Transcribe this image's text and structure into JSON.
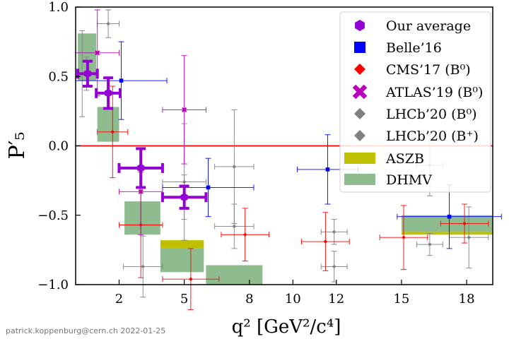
{
  "chart_data": {
    "type": "scatter",
    "title": "",
    "xlabel": "q² [GeV²/c⁴]",
    "ylabel": "P′₅",
    "xlim": [
      0,
      19.2
    ],
    "ylim": [
      -1.0,
      1.0
    ],
    "xticks": [
      2,
      5,
      8,
      10,
      12,
      15,
      18
    ],
    "xtick_labels": [
      "2",
      "5",
      "8",
      "10",
      "12",
      "15",
      "18"
    ],
    "yticks": [
      -1.0,
      -0.5,
      0.0,
      0.5,
      1.0
    ],
    "ytick_labels": [
      "−1.0",
      "−0.5",
      "0.0",
      "0.5",
      "1.0"
    ],
    "reference_line": {
      "y": 0.0,
      "color": "#ff0000"
    },
    "legend_position": "top-right",
    "footer": "patrick.koppenburg@cern.ch  2022-01-25",
    "series": [
      {
        "name": "Our average",
        "marker": "hexagon",
        "color": "#9400d3",
        "points": [
          {
            "x": 0.55,
            "xerr": 0.45,
            "y": 0.52,
            "yerr": 0.09
          },
          {
            "x": 1.5,
            "xerr": 0.55,
            "y": 0.38,
            "yerr": 0.11
          },
          {
            "x": 3.0,
            "xerr": 1.0,
            "y": -0.16,
            "yerr": 0.14
          },
          {
            "x": 5.0,
            "xerr": 1.0,
            "y": -0.37,
            "yerr": 0.08
          }
        ]
      },
      {
        "name": "Belle’16",
        "marker": "square",
        "color": "#0000ff",
        "points": [
          {
            "x": 2.1,
            "xerr": 2.1,
            "y": 0.47,
            "yerr": 0.28
          },
          {
            "x": 6.1,
            "xerr": 2.1,
            "y": -0.3,
            "yerr": 0.21
          },
          {
            "x": 11.6,
            "xerr": 1.4,
            "y": -0.17,
            "yerr": 0.25
          },
          {
            "x": 17.2,
            "xerr": 2.4,
            "y": -0.51,
            "yerr": 0.23
          }
        ]
      },
      {
        "name": "CMS’17 (B⁰)",
        "marker": "diamond",
        "color": "#ff0000",
        "points": [
          {
            "x": 1.7,
            "xerr": 0.7,
            "y": 0.1,
            "yerr": 0.33
          },
          {
            "x": 3.0,
            "xerr": 1.0,
            "y": -0.57,
            "yerr": 0.38
          },
          {
            "x": 5.3,
            "xerr": 1.3,
            "y": -0.96,
            "yerr": 0.22
          },
          {
            "x": 7.8,
            "xerr": 1.1,
            "y": -0.64,
            "yerr": 0.19
          },
          {
            "x": 11.5,
            "xerr": 1.1,
            "y": -0.69,
            "yerr": 0.21
          },
          {
            "x": 15.1,
            "xerr": 1.1,
            "y": -0.66,
            "yerr": 0.23
          },
          {
            "x": 17.9,
            "xerr": 1.1,
            "y": -0.56,
            "yerr": 0.14
          }
        ]
      },
      {
        "name": "ATLAS’19 (B⁰)",
        "marker": "cross",
        "color": "#bb00bb",
        "points": [
          {
            "x": 1.0,
            "xerr": 1.0,
            "y": 0.67,
            "yerr": 0.31
          },
          {
            "x": 3.0,
            "xerr": 1.0,
            "y": -0.33,
            "yerr": 0.31
          },
          {
            "x": 5.0,
            "xerr": 1.0,
            "y": 0.26,
            "yerr": 0.39
          }
        ]
      },
      {
        "name": "LHCb’20 (B⁰)",
        "marker": "diamond",
        "color": "#808080",
        "points": [
          {
            "x": 0.3,
            "xerr": 0.2,
            "y": 0.52,
            "yerr": 0.31
          },
          {
            "x": 1.5,
            "xerr": 0.5,
            "y": 0.88,
            "yerr": 0.1
          },
          {
            "x": 3.1,
            "xerr": 0.9,
            "y": -0.87,
            "yerr": 0.22
          },
          {
            "x": 5.0,
            "xerr": 1.0,
            "y": -0.26,
            "yerr": 0.42
          },
          {
            "x": 7.3,
            "xerr": 0.9,
            "y": -0.15,
            "yerr": 0.41
          },
          {
            "x": 7.3,
            "xerr": 0.9,
            "y": -0.58,
            "yerr": 0.16
          },
          {
            "x": 11.9,
            "xerr": 0.6,
            "y": -0.62,
            "yerr": 0.09
          },
          {
            "x": 11.9,
            "xerr": 0.6,
            "y": -0.87,
            "yerr": 0.11
          },
          {
            "x": 16.3,
            "xerr": 0.6,
            "y": -0.71,
            "yerr": 0.08
          },
          {
            "x": 16.3,
            "xerr": 0.6,
            "y": -0.14,
            "yerr": 0.22
          }
        ]
      },
      {
        "name": "LHCb’20 (B⁺)",
        "marker": "diamond",
        "color": "#808080",
        "points": [
          {
            "x": 0.5,
            "xerr": 0.4,
            "y": 0.52,
            "yerr": 0.12
          },
          {
            "x": 5.0,
            "xerr": 1.0,
            "y": -0.37,
            "yerr": 0.16
          },
          {
            "x": 18.1,
            "xerr": 0.9,
            "y": -0.66,
            "yerr": 0.22
          }
        ]
      }
    ],
    "theory_bands": [
      {
        "name": "ASZB",
        "color": "#c0c000",
        "boxes": [
          {
            "x0": 3.9,
            "x1": 5.9,
            "y0": -0.74,
            "y1": -0.68
          },
          {
            "x0": 15.0,
            "x1": 19.2,
            "y0": -0.64,
            "y1": -0.62
          }
        ]
      },
      {
        "name": "DHMV",
        "color": "#8fbc8f",
        "boxes": [
          {
            "x0": 0.1,
            "x1": 0.95,
            "y0": 0.47,
            "y1": 0.81
          },
          {
            "x0": 1.0,
            "x1": 2.0,
            "y0": 0.03,
            "y1": 0.28
          },
          {
            "x0": 2.25,
            "x1": 3.9,
            "y0": -0.64,
            "y1": -0.4
          },
          {
            "x0": 3.9,
            "x1": 5.9,
            "y0": -0.91,
            "y1": -0.74
          },
          {
            "x0": 6.0,
            "x1": 8.6,
            "y0": -1.0,
            "y1": -0.86
          },
          {
            "x0": 15.0,
            "x1": 19.2,
            "y0": -0.62,
            "y1": -0.5
          }
        ]
      }
    ]
  }
}
